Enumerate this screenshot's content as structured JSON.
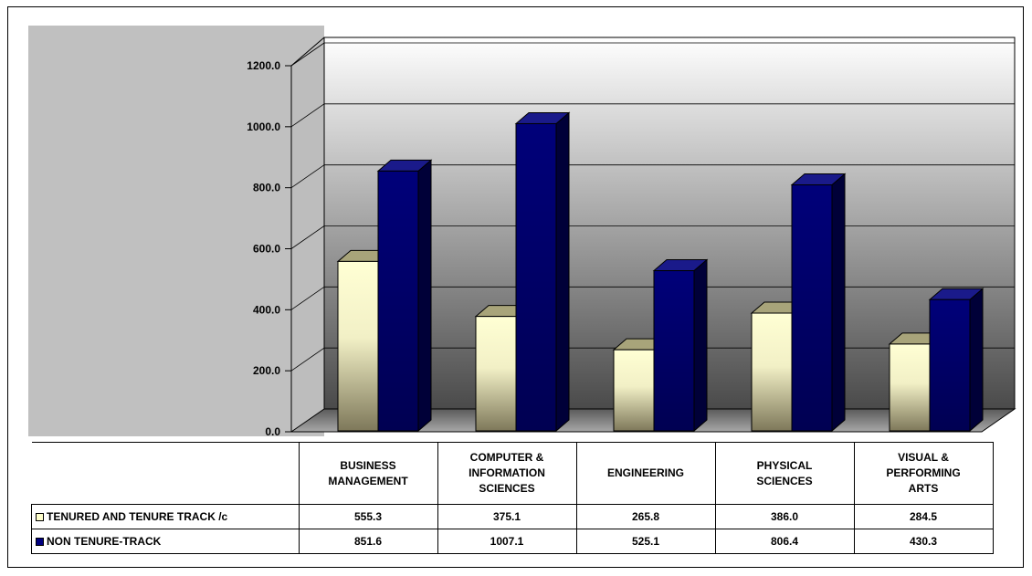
{
  "chart_data": {
    "type": "bar",
    "title": "",
    "xlabel": "",
    "ylabel": "",
    "ylim": [
      0,
      1200
    ],
    "yticks": [
      "0.0",
      "200.0",
      "400.0",
      "600.0",
      "800.0",
      "1000.0",
      "1200.0"
    ],
    "grid": true,
    "three_d": true,
    "legend": "data-table-rows",
    "categories": [
      [
        "BUSINESS",
        "MANAGEMENT"
      ],
      [
        "COMPUTER &",
        "INFORMATION",
        "SCIENCES"
      ],
      [
        "ENGINEERING"
      ],
      [
        "PHYSICAL",
        "SCIENCES"
      ],
      [
        "VISUAL &",
        "PERFORMING",
        "ARTS"
      ]
    ],
    "series": [
      {
        "name": "TENURED AND TENURE TRACK /c",
        "values": [
          555.3,
          375.1,
          265.8,
          386.0,
          284.5
        ],
        "labels": [
          "555.3",
          "375.1",
          "265.8",
          "386.0",
          "284.5"
        ],
        "color": "#ffffcc"
      },
      {
        "name": "NON TENURE-TRACK",
        "values": [
          851.6,
          1007.1,
          525.1,
          806.4,
          430.3
        ],
        "labels": [
          "851.6",
          "1007.1",
          "525.1",
          "806.4",
          "430.3"
        ],
        "color": "#000080"
      }
    ]
  }
}
